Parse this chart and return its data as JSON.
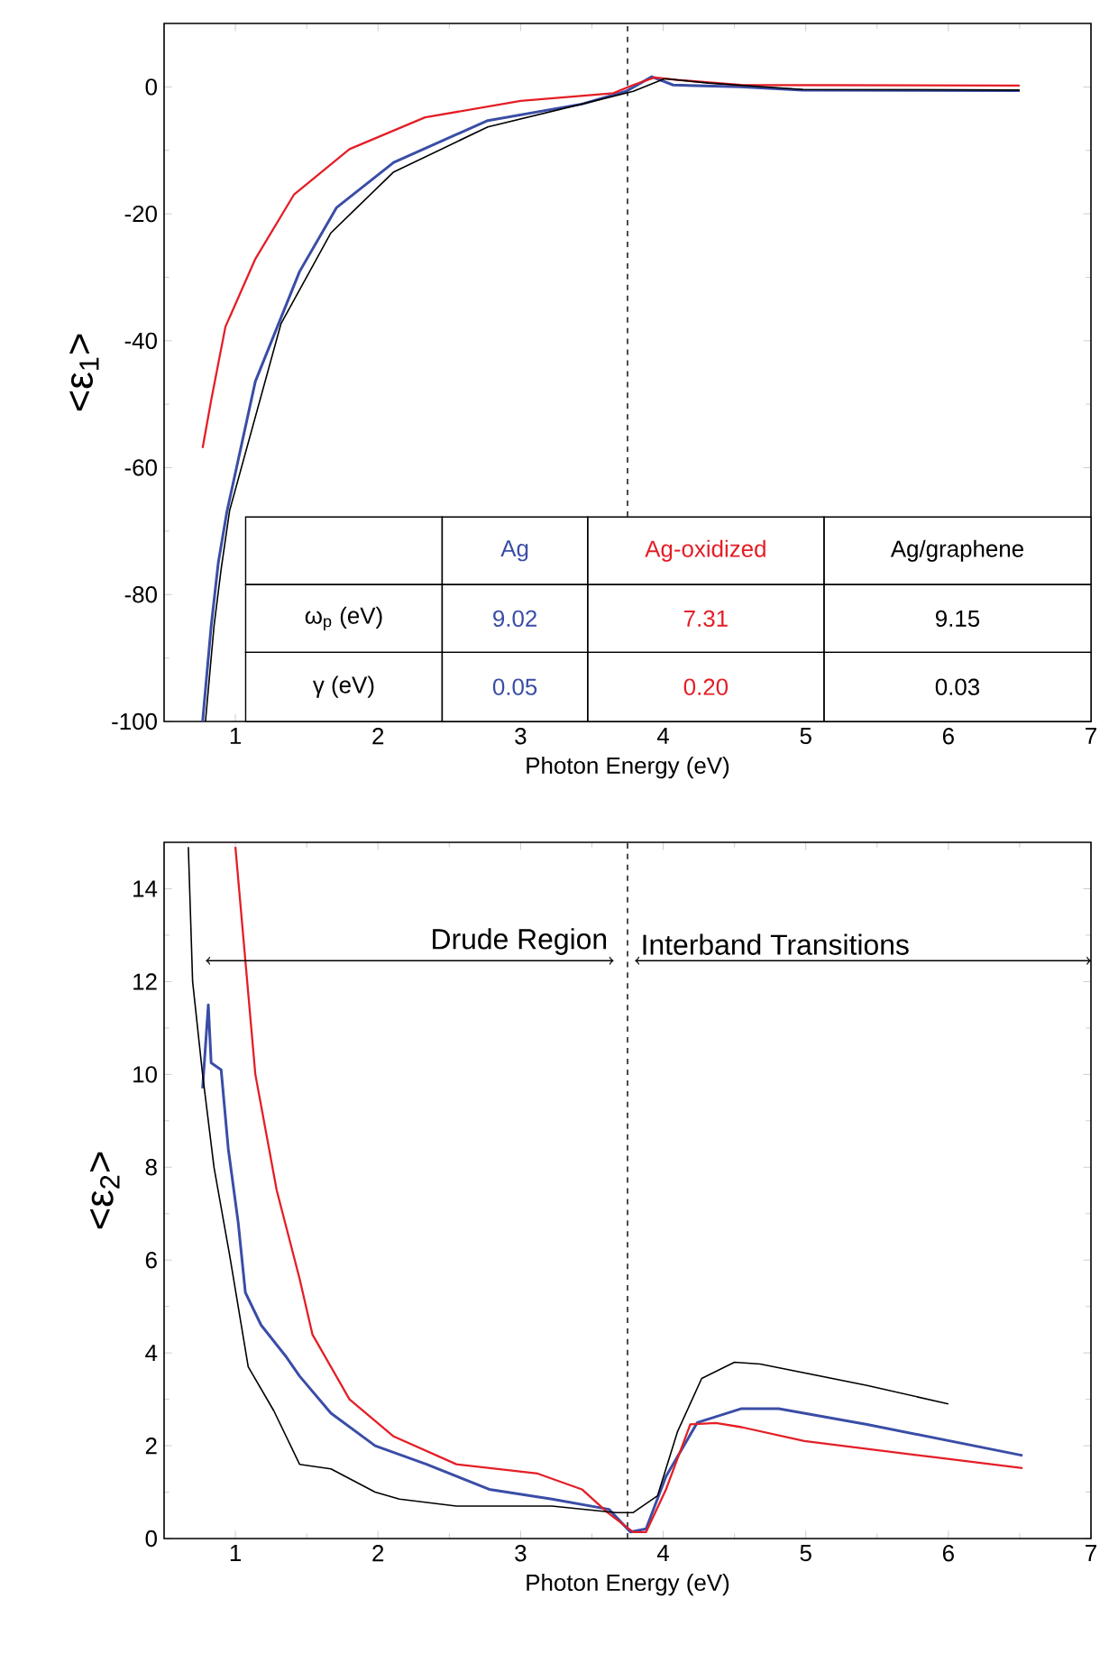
{
  "chart_data": [
    {
      "type": "line",
      "xlabel": "Photon Energy (eV)",
      "ylabel": "<ε$_{1}$>",
      "xlim": [
        0.5,
        7
      ],
      "ylim": [
        -100,
        10
      ],
      "xticks": [
        1,
        2,
        3,
        4,
        5,
        6,
        7
      ],
      "yticks": [
        -100,
        -80,
        -60,
        -40,
        -20,
        0
      ],
      "series": [
        {
          "name": "Ag",
          "color": "#3a4da6",
          "x": [
            0.77,
            0.83,
            0.88,
            0.94,
            1.14,
            1.45,
            1.71,
            2.11,
            2.77,
            3.43,
            3.74,
            3.92,
            4.07,
            4.54,
            4.98,
            6.5
          ],
          "values": [
            -100,
            -85,
            -75,
            -67,
            -46.4,
            -29.1,
            -19,
            -11.9,
            -5.3,
            -2.7,
            -0.7,
            1.6,
            0.3,
            0,
            -0.5,
            -0.6
          ]
        },
        {
          "name": "Ag-oxidized",
          "color": "#e41e26",
          "x": [
            0.77,
            0.83,
            0.93,
            1.14,
            1.41,
            1.8,
            2.33,
            3.0,
            3.65,
            3.79,
            3.94,
            4.1,
            4.54,
            6.5
          ],
          "values": [
            -56.9,
            -49.4,
            -37.8,
            -27.1,
            -17,
            -9.8,
            -4.8,
            -2.2,
            -1.0,
            0.3,
            1.5,
            1.1,
            0.3,
            0.2
          ]
        },
        {
          "name": "Ag/graphene",
          "color": "#000000",
          "x": [
            0.79,
            0.85,
            0.9,
            0.96,
            1.32,
            1.67,
            2.11,
            2.77,
            3.43,
            3.79,
            4.01,
            4.32,
            4.98,
            6.5
          ],
          "values": [
            -100,
            -85,
            -76,
            -66.7,
            -37.3,
            -23,
            -13.4,
            -6.3,
            -2.7,
            -0.7,
            1.3,
            0.6,
            -0.4,
            -0.5
          ]
        }
      ],
      "ref_lines": [
        {
          "axis": "x",
          "value": 3.75,
          "line_style": "dashed"
        }
      ],
      "annotations": [
        "ω$_{p}$ (eV)",
        "9.02",
        "7.31",
        "9.15",
        "γ (eV)",
        "0.05",
        "0.20",
        "0.03"
      ]
    },
    {
      "type": "line",
      "xlabel": "Photon Energy (eV)",
      "ylabel": "<ε$_{2}$>",
      "xlim": [
        0.5,
        7
      ],
      "ylim": [
        0,
        15
      ],
      "xticks": [
        1,
        2,
        3,
        4,
        5,
        6,
        7
      ],
      "yticks": [
        0,
        2,
        4,
        6,
        8,
        10,
        12,
        14
      ],
      "series": [
        {
          "color": "#3a4da6",
          "x": [
            0.77,
            0.81,
            0.83,
            0.9,
            0.95,
            1.02,
            1.07,
            1.18,
            1.36,
            1.45,
            1.67,
            1.98,
            2.34,
            2.78,
            3.22,
            3.62,
            3.77,
            3.88,
            4.02,
            4.24,
            4.55,
            4.81,
            5.43,
            6.52
          ],
          "values": [
            9.7,
            11.5,
            10.25,
            10.1,
            8.4,
            6.8,
            5.3,
            4.6,
            3.9,
            3.5,
            2.7,
            2.0,
            1.6,
            1.06,
            0.85,
            0.63,
            0.14,
            0.21,
            1.34,
            2.5,
            2.8,
            2.8,
            2.46,
            1.79
          ]
        },
        {
          "color": "#e41e26",
          "x": [
            1.0,
            1.14,
            1.29,
            1.45,
            1.54,
            1.8,
            2.11,
            2.55,
            3.12,
            3.43,
            3.61,
            3.79,
            3.88,
            4.02,
            4.19,
            4.37,
            4.55,
            4.99,
            5.88,
            6.52
          ],
          "values": [
            14.9,
            10,
            7.5,
            5.6,
            4.4,
            3.0,
            2.2,
            1.6,
            1.4,
            1.06,
            0.56,
            0.14,
            0.14,
            1.06,
            2.46,
            2.49,
            2.4,
            2.1,
            1.76,
            1.52
          ]
        },
        {
          "color": "#000000",
          "x": [
            0.67,
            0.7,
            0.77,
            0.85,
            0.96,
            1.09,
            1.27,
            1.45,
            1.67,
            1.98,
            2.15,
            2.55,
            3.22,
            3.67,
            3.79,
            3.96,
            4.1,
            4.27,
            4.5,
            4.68,
            5.43,
            6.0
          ],
          "values": [
            14.9,
            12,
            10,
            8,
            6.1,
            3.7,
            2.75,
            1.6,
            1.5,
            1.0,
            0.85,
            0.7,
            0.7,
            0.56,
            0.56,
            0.92,
            2.3,
            3.45,
            3.8,
            3.76,
            3.3,
            2.9
          ]
        }
      ],
      "ref_lines": [
        {
          "axis": "x",
          "value": 3.75,
          "line_style": "dashed"
        }
      ],
      "annotations": [
        "Drude Region",
        "Interband Transitions"
      ]
    }
  ]
}
